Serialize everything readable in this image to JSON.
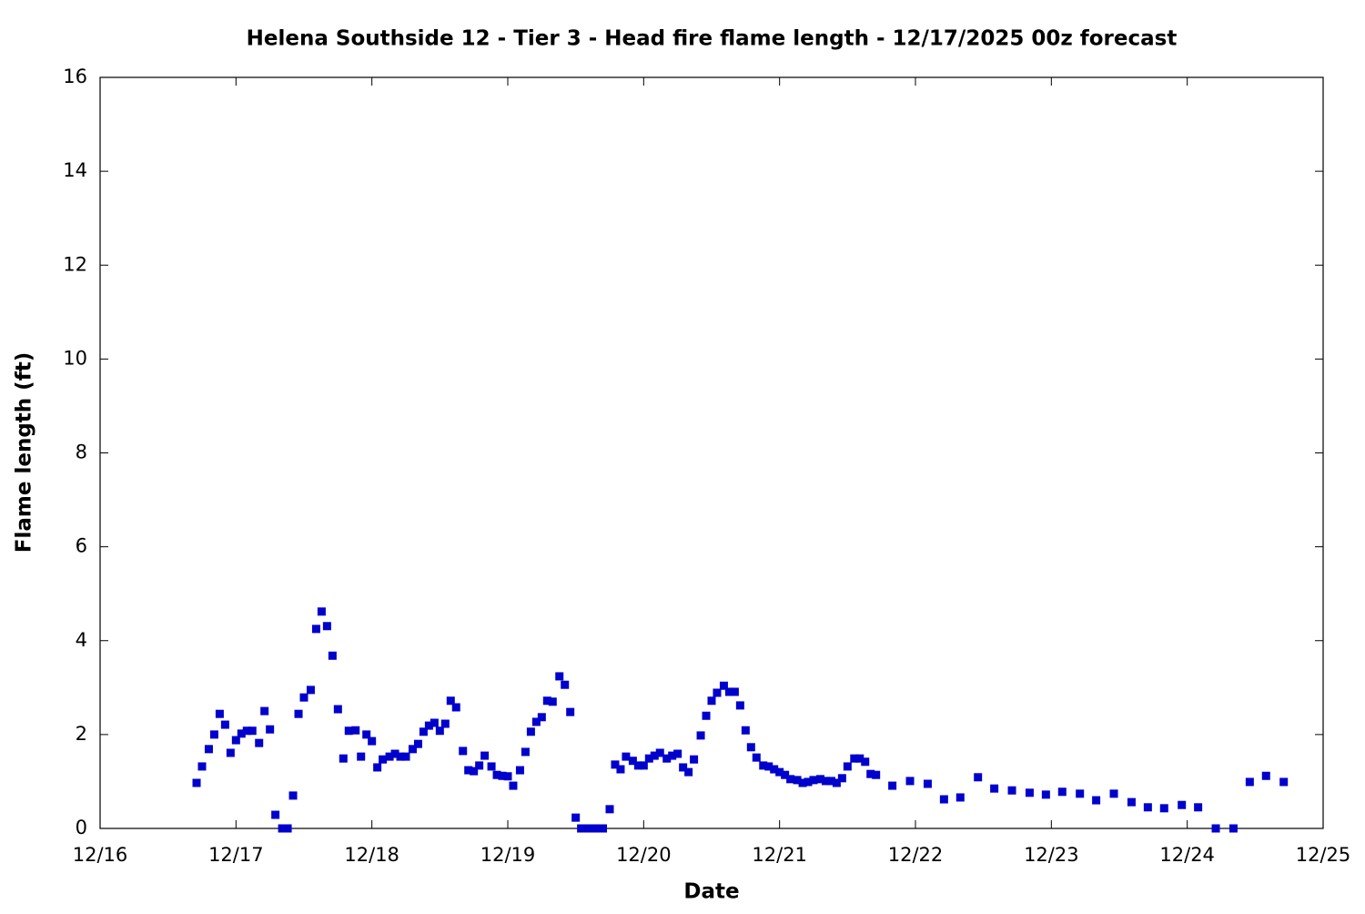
{
  "chart_data": {
    "type": "scatter",
    "title": "Helena Southside 12 - Tier 3 - Head fire flame length - 12/17/2025 00z forecast",
    "x_label": "Date",
    "y_label": "Flame length (ft)",
    "color": "#0000cc",
    "xlim": [
      0,
      9
    ],
    "xticks": [
      {
        "value": 0,
        "label": "12/16"
      },
      {
        "value": 1,
        "label": "12/17"
      },
      {
        "value": 2,
        "label": "12/18"
      },
      {
        "value": 3,
        "label": "12/19"
      },
      {
        "value": 4,
        "label": "12/20"
      },
      {
        "value": 5,
        "label": "12/21"
      },
      {
        "value": 6,
        "label": "12/22"
      },
      {
        "value": 7,
        "label": "12/23"
      },
      {
        "value": 8,
        "label": "12/24"
      },
      {
        "value": 9,
        "label": "12/25"
      }
    ],
    "ylim": [
      0,
      16
    ],
    "yticks": [
      0,
      2,
      4,
      6,
      8,
      10,
      12,
      14,
      16
    ],
    "x": [
      0.71,
      0.75,
      0.8,
      0.84,
      0.88,
      0.92,
      0.96,
      1.0,
      1.04,
      1.08,
      1.12,
      1.17,
      1.21,
      1.25,
      1.29,
      1.34,
      1.38,
      1.42,
      1.46,
      1.5,
      1.55,
      1.59,
      1.63,
      1.67,
      1.71,
      1.75,
      1.79,
      1.83,
      1.88,
      1.92,
      1.96,
      2.0,
      2.04,
      2.08,
      2.13,
      2.17,
      2.21,
      2.25,
      2.3,
      2.34,
      2.38,
      2.42,
      2.46,
      2.5,
      2.54,
      2.58,
      2.62,
      2.67,
      2.71,
      2.75,
      2.79,
      2.83,
      2.88,
      2.92,
      2.96,
      3.0,
      3.04,
      3.09,
      3.13,
      3.17,
      3.21,
      3.25,
      3.29,
      3.33,
      3.38,
      3.42,
      3.46,
      3.5,
      3.54,
      3.58,
      3.62,
      3.66,
      3.7,
      3.75,
      3.79,
      3.83,
      3.87,
      3.92,
      3.96,
      4.0,
      4.04,
      4.08,
      4.12,
      4.17,
      4.21,
      4.25,
      4.29,
      4.33,
      4.37,
      4.42,
      4.46,
      4.5,
      4.54,
      4.59,
      4.63,
      4.67,
      4.71,
      4.75,
      4.79,
      4.83,
      4.88,
      4.92,
      4.96,
      5.0,
      5.04,
      5.08,
      5.13,
      5.17,
      5.21,
      5.25,
      5.3,
      5.34,
      5.38,
      5.42,
      5.46,
      5.5,
      5.55,
      5.59,
      5.63,
      5.67,
      5.71,
      5.83,
      5.96,
      6.09,
      6.21,
      6.33,
      6.46,
      6.58,
      6.71,
      6.84,
      6.96,
      7.08,
      7.21,
      7.33,
      7.46,
      7.59,
      7.71,
      7.83,
      7.96,
      8.08,
      8.21,
      8.34,
      8.46,
      8.58,
      8.71
    ],
    "values": [
      0.97,
      1.32,
      1.69,
      2.0,
      2.44,
      2.21,
      1.61,
      1.88,
      2.02,
      2.08,
      2.08,
      1.82,
      2.5,
      2.11,
      0.29,
      0,
      0,
      0.7,
      2.44,
      2.79,
      2.95,
      4.25,
      4.62,
      4.31,
      3.68,
      2.54,
      1.49,
      2.08,
      2.09,
      1.53,
      2.0,
      1.86,
      1.3,
      1.47,
      1.53,
      1.59,
      1.53,
      1.53,
      1.69,
      1.8,
      2.06,
      2.19,
      2.25,
      2.08,
      2.23,
      2.72,
      2.58,
      1.65,
      1.24,
      1.22,
      1.34,
      1.55,
      1.32,
      1.14,
      1.12,
      1.11,
      0.91,
      1.24,
      1.63,
      2.06,
      2.27,
      2.37,
      2.72,
      2.7,
      3.24,
      3.06,
      2.48,
      0.23,
      0,
      0,
      0,
      0,
      0,
      0.41,
      1.36,
      1.26,
      1.53,
      1.44,
      1.34,
      1.34,
      1.49,
      1.55,
      1.61,
      1.49,
      1.55,
      1.59,
      1.3,
      1.2,
      1.47,
      1.98,
      2.4,
      2.72,
      2.89,
      3.04,
      2.91,
      2.91,
      2.62,
      2.09,
      1.73,
      1.51,
      1.34,
      1.32,
      1.26,
      1.2,
      1.14,
      1.05,
      1.03,
      0.97,
      0.99,
      1.03,
      1.05,
      1.01,
      1.01,
      0.97,
      1.07,
      1.32,
      1.49,
      1.49,
      1.42,
      1.16,
      1.14,
      0.91,
      1.01,
      0.95,
      0.62,
      0.66,
      1.09,
      0.85,
      0.81,
      0.76,
      0.72,
      0.78,
      0.74,
      0.6,
      0.74,
      0.56,
      0.45,
      0.43,
      0.5,
      0.45,
      0,
      0,
      0.99,
      1.12,
      0.99
    ]
  }
}
